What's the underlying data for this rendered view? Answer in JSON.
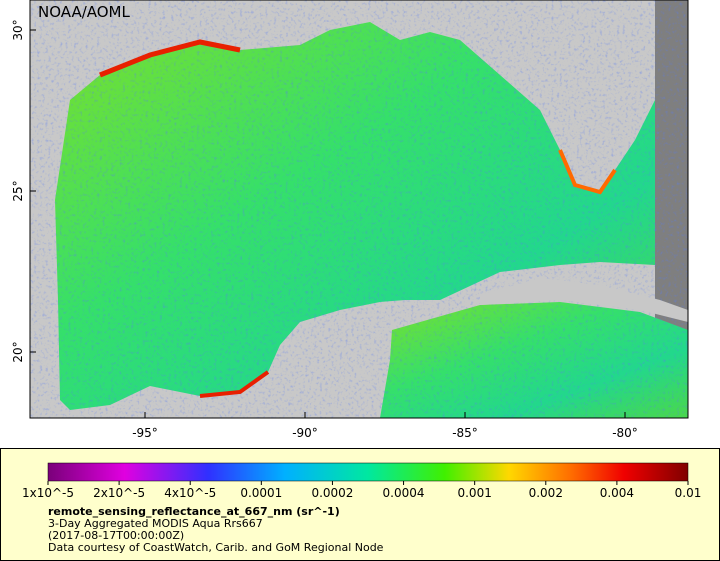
{
  "map": {
    "watermark": "NOAA/AOML",
    "lat_labels": [
      "30°",
      "25°",
      "20°"
    ],
    "lon_labels": [
      "-95°",
      "-90°",
      "-85°",
      "-80°"
    ]
  },
  "colorbar": {
    "labels": [
      "1x10^-5",
      "2x10^-5",
      "4x10^-5",
      "0.0001",
      "0.0002",
      "0.0004",
      "0.001",
      "0.002",
      "0.004",
      "0.01"
    ]
  },
  "caption": {
    "variable": "remote_sensing_reflectance_at_667_nm (sr^-1)",
    "lines": [
      "3-Day Aggregated MODIS Aqua Rrs667",
      "(2017-08-17T00:00:00Z)",
      "Data courtesy of CoastWatch, Carib. and GoM Regional Node"
    ]
  }
}
